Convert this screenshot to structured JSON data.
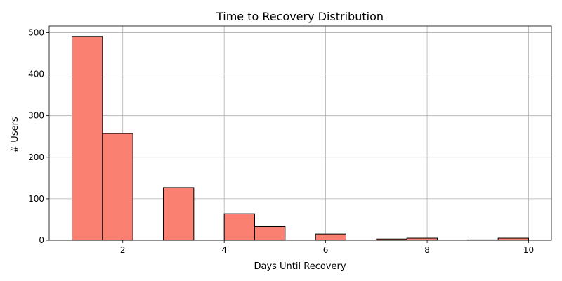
{
  "chart_data": {
    "type": "bar",
    "title": "Time to Recovery Distribution",
    "xlabel": "Days Until Recovery",
    "ylabel": "# Users",
    "xlim": [
      0.55,
      10.45
    ],
    "ylim": [
      0,
      516
    ],
    "xticks": [
      2,
      4,
      6,
      8,
      10
    ],
    "yticks": [
      0,
      100,
      200,
      300,
      400,
      500
    ],
    "grid": true,
    "bins": [
      {
        "x0": 1.0,
        "x1": 1.6,
        "value": 491
      },
      {
        "x0": 1.6,
        "x1": 2.2,
        "value": 257
      },
      {
        "x0": 2.2,
        "x1": 2.8,
        "value": 0
      },
      {
        "x0": 2.8,
        "x1": 3.4,
        "value": 127
      },
      {
        "x0": 3.4,
        "x1": 4.0,
        "value": 0
      },
      {
        "x0": 4.0,
        "x1": 4.6,
        "value": 64
      },
      {
        "x0": 4.6,
        "x1": 5.2,
        "value": 33
      },
      {
        "x0": 5.2,
        "x1": 5.8,
        "value": 0
      },
      {
        "x0": 5.8,
        "x1": 6.4,
        "value": 15
      },
      {
        "x0": 6.4,
        "x1": 7.0,
        "value": 0
      },
      {
        "x0": 7.0,
        "x1": 7.6,
        "value": 3
      },
      {
        "x0": 7.6,
        "x1": 8.2,
        "value": 5
      },
      {
        "x0": 8.2,
        "x1": 8.8,
        "value": 0
      },
      {
        "x0": 8.8,
        "x1": 9.4,
        "value": 1
      },
      {
        "x0": 9.4,
        "x1": 10.0,
        "value": 5
      }
    ],
    "bar_color": "#fa8072",
    "edge_color": "#000000",
    "grid_color": "#b0b0b0"
  }
}
